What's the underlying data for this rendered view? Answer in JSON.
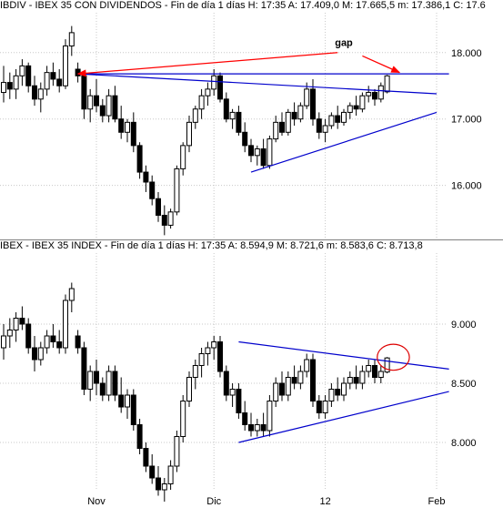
{
  "chart_data": [
    {
      "type": "candlestick",
      "title": "IBDIV - IBEX 35 CON DIVIDENDOS - Fin de día 1 días  H: 17:35  A: 17.409,0  M: 17.665,5  m: 17.386,1  C: 17.6",
      "ylim": [
        15200,
        18600
      ],
      "yticks": [
        16000,
        17000,
        18000
      ],
      "ytick_labels": [
        "16.000",
        "17.000",
        "18.000"
      ],
      "grid": true,
      "annotations": [
        {
          "text": "gap"
        }
      ],
      "candles": [
        [
          17400,
          17800,
          17250,
          17550
        ],
        [
          17550,
          17700,
          17300,
          17450
        ],
        [
          17450,
          17750,
          17300,
          17650
        ],
        [
          17650,
          17900,
          17500,
          17800
        ],
        [
          17800,
          17850,
          17400,
          17500
        ],
        [
          17500,
          17650,
          17200,
          17300
        ],
        [
          17300,
          17550,
          17100,
          17450
        ],
        [
          17450,
          17800,
          17350,
          17700
        ],
        [
          17700,
          17850,
          17500,
          17600
        ],
        [
          17600,
          17750,
          17400,
          17500
        ],
        [
          17500,
          18200,
          17450,
          18100
        ],
        [
          18100,
          18400,
          17950,
          18300
        ],
        [
          17750,
          17850,
          17550,
          17650
        ],
        [
          17650,
          17700,
          17000,
          17150
        ],
        [
          17150,
          17450,
          16950,
          17350
        ],
        [
          17350,
          17600,
          17100,
          17200
        ],
        [
          17200,
          17300,
          16950,
          17050
        ],
        [
          17050,
          17450,
          16950,
          17350
        ],
        [
          17350,
          17500,
          16950,
          17000
        ],
        [
          17000,
          17200,
          16700,
          16800
        ],
        [
          16800,
          17000,
          16650,
          16950
        ],
        [
          16950,
          17100,
          16500,
          16600
        ],
        [
          16600,
          16650,
          16100,
          16200
        ],
        [
          16200,
          16300,
          15900,
          16050
        ],
        [
          16050,
          16150,
          15700,
          15800
        ],
        [
          15800,
          15900,
          15450,
          15550
        ],
        [
          15550,
          15700,
          15250,
          15400
        ],
        [
          15400,
          15650,
          15350,
          15600
        ],
        [
          15600,
          16300,
          15550,
          16250
        ],
        [
          16250,
          16650,
          16150,
          16600
        ],
        [
          16600,
          17050,
          16500,
          16950
        ],
        [
          16950,
          17200,
          16850,
          17150
        ],
        [
          17150,
          17450,
          17000,
          17350
        ],
        [
          17350,
          17550,
          17200,
          17450
        ],
        [
          17450,
          17750,
          17350,
          17650
        ],
        [
          17650,
          17700,
          17250,
          17300
        ],
        [
          17300,
          17400,
          16950,
          17000
        ],
        [
          17000,
          17150,
          16850,
          17100
        ],
        [
          17100,
          17200,
          16750,
          16800
        ],
        [
          16800,
          16950,
          16500,
          16600
        ],
        [
          16600,
          16700,
          16350,
          16450
        ],
        [
          16450,
          16600,
          16300,
          16550
        ],
        [
          16550,
          16700,
          16250,
          16300
        ],
        [
          16300,
          16750,
          16250,
          16700
        ],
        [
          16700,
          17050,
          16650,
          16950
        ],
        [
          16950,
          17100,
          16750,
          16800
        ],
        [
          16800,
          17150,
          16750,
          17100
        ],
        [
          17100,
          17250,
          16900,
          17000
        ],
        [
          17000,
          17250,
          16950,
          17200
        ],
        [
          17200,
          17550,
          17150,
          17450
        ],
        [
          17450,
          17600,
          16900,
          17000
        ],
        [
          17000,
          17100,
          16700,
          16800
        ],
        [
          16800,
          17000,
          16650,
          16900
        ],
        [
          16900,
          17100,
          16850,
          17050
        ],
        [
          17050,
          17200,
          16850,
          16950
        ],
        [
          16950,
          17150,
          16900,
          17100
        ],
        [
          17100,
          17250,
          17000,
          17200
        ],
        [
          17200,
          17350,
          17050,
          17150
        ],
        [
          17150,
          17400,
          17100,
          17350
        ],
        [
          17350,
          17500,
          17250,
          17400
        ],
        [
          17400,
          17450,
          17200,
          17300
        ],
        [
          17300,
          17550,
          17250,
          17500
        ],
        [
          17409,
          17665,
          17386,
          17650
        ]
      ],
      "overlays": [
        {
          "kind": "hline",
          "value": 17680,
          "color": "#0000cc"
        },
        {
          "kind": "trend",
          "from": [
            12,
            17680
          ],
          "to": [
            70,
            17380
          ],
          "color": "#0000cc"
        },
        {
          "kind": "trend",
          "from": [
            40,
            16200
          ],
          "to": [
            70,
            17100
          ],
          "color": "#0000cc"
        },
        {
          "kind": "arrow",
          "from": [
            54,
            18000
          ],
          "to": [
            12,
            17680
          ],
          "color": "#ff0000"
        },
        {
          "kind": "arrow",
          "from": [
            58,
            17950
          ],
          "to": [
            64,
            17700
          ],
          "color": "#ff0000"
        }
      ]
    },
    {
      "type": "candlestick",
      "title": "IBEX - IBEX 35 INDEX - Fin de día 1 días  H: 17:35  A: 8.594,9  M: 8.721,6  m: 8.583,6  C: 8.713,8",
      "ylim": [
        7600,
        9600
      ],
      "yticks": [
        8000,
        8500,
        9000
      ],
      "ytick_labels": [
        "8.000",
        "8.500",
        "9.000"
      ],
      "grid": true,
      "x_labels": [
        {
          "i": 15,
          "text": "Nov"
        },
        {
          "i": 34,
          "text": "Dic"
        },
        {
          "i": 52,
          "text": "12"
        },
        {
          "i": 70,
          "text": "Feb"
        }
      ],
      "annotations": [],
      "candles": [
        [
          8800,
          9000,
          8700,
          8900
        ],
        [
          8900,
          9050,
          8800,
          8950
        ],
        [
          8950,
          9100,
          8850,
          9050
        ],
        [
          9050,
          9150,
          8950,
          9000
        ],
        [
          9000,
          9050,
          8750,
          8800
        ],
        [
          8800,
          8900,
          8600,
          8700
        ],
        [
          8700,
          8850,
          8650,
          8800
        ],
        [
          8800,
          8950,
          8750,
          8900
        ],
        [
          8900,
          9000,
          8800,
          8850
        ],
        [
          8850,
          8950,
          8750,
          8800
        ],
        [
          8800,
          9250,
          8750,
          9200
        ],
        [
          9200,
          9350,
          9100,
          9300
        ],
        [
          8900,
          8950,
          8750,
          8800
        ],
        [
          8800,
          8850,
          8400,
          8450
        ],
        [
          8450,
          8650,
          8350,
          8600
        ],
        [
          8600,
          8700,
          8400,
          8500
        ],
        [
          8500,
          8550,
          8350,
          8400
        ],
        [
          8400,
          8650,
          8350,
          8600
        ],
        [
          8600,
          8650,
          8350,
          8400
        ],
        [
          8400,
          8550,
          8250,
          8300
        ],
        [
          8300,
          8450,
          8200,
          8400
        ],
        [
          8400,
          8450,
          8100,
          8150
        ],
        [
          8150,
          8200,
          7900,
          7950
        ],
        [
          7950,
          8000,
          7750,
          7800
        ],
        [
          7800,
          7900,
          7650,
          7700
        ],
        [
          7700,
          7800,
          7550,
          7600
        ],
        [
          7600,
          7700,
          7500,
          7650
        ],
        [
          7650,
          7850,
          7600,
          7800
        ],
        [
          7800,
          8100,
          7750,
          8050
        ],
        [
          8050,
          8400,
          8000,
          8350
        ],
        [
          8350,
          8600,
          8300,
          8550
        ],
        [
          8550,
          8700,
          8450,
          8650
        ],
        [
          8650,
          8800,
          8550,
          8750
        ],
        [
          8750,
          8850,
          8650,
          8800
        ],
        [
          8800,
          8900,
          8700,
          8850
        ],
        [
          8850,
          8900,
          8550,
          8600
        ],
        [
          8600,
          8650,
          8350,
          8400
        ],
        [
          8400,
          8500,
          8300,
          8450
        ],
        [
          8450,
          8500,
          8200,
          8250
        ],
        [
          8250,
          8350,
          8100,
          8150
        ],
        [
          8150,
          8250,
          8050,
          8100
        ],
        [
          8100,
          8200,
          8050,
          8150
        ],
        [
          8150,
          8250,
          8050,
          8100
        ],
        [
          8100,
          8400,
          8050,
          8350
        ],
        [
          8350,
          8550,
          8300,
          8500
        ],
        [
          8500,
          8600,
          8350,
          8400
        ],
        [
          8400,
          8600,
          8350,
          8550
        ],
        [
          8550,
          8650,
          8450,
          8500
        ],
        [
          8500,
          8650,
          8450,
          8600
        ],
        [
          8600,
          8750,
          8550,
          8700
        ],
        [
          8700,
          8750,
          8300,
          8350
        ],
        [
          8350,
          8400,
          8200,
          8250
        ],
        [
          8250,
          8400,
          8200,
          8350
        ],
        [
          8350,
          8500,
          8300,
          8450
        ],
        [
          8450,
          8550,
          8350,
          8400
        ],
        [
          8400,
          8550,
          8350,
          8500
        ],
        [
          8500,
          8600,
          8450,
          8550
        ],
        [
          8550,
          8650,
          8450,
          8500
        ],
        [
          8500,
          8650,
          8450,
          8600
        ],
        [
          8600,
          8700,
          8550,
          8650
        ],
        [
          8650,
          8700,
          8500,
          8550
        ],
        [
          8550,
          8650,
          8500,
          8600
        ],
        [
          8595,
          8722,
          8584,
          8714
        ]
      ],
      "overlays": [
        {
          "kind": "trend",
          "from": [
            38,
            8850
          ],
          "to": [
            72,
            8620
          ],
          "color": "#0000cc"
        },
        {
          "kind": "trend",
          "from": [
            38,
            8000
          ],
          "to": [
            72,
            8430
          ],
          "color": "#0000cc"
        },
        {
          "kind": "ellipse",
          "center": [
            63,
            8720
          ],
          "rx_bars": 2.6,
          "ry_value": 110,
          "color": "#dd0000"
        }
      ]
    }
  ],
  "colors": {
    "bull": "#ffffff",
    "bear": "#000000",
    "grid": "#c8c8c8",
    "separator": "#808080",
    "header_bg": "#ffffff"
  }
}
